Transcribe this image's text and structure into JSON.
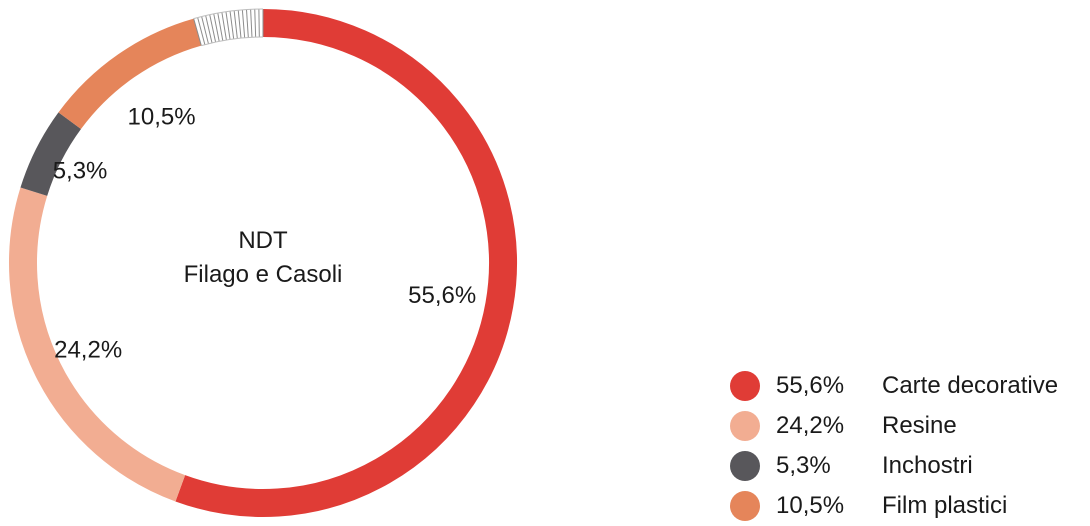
{
  "chart_data": {
    "type": "pie",
    "title": "NDT",
    "subtitle": "Filago e Casoli",
    "series": [
      {
        "name": "Carte decorative",
        "value": 55.6,
        "label": "55,6%",
        "color": "#e03c36"
      },
      {
        "name": "Resine",
        "value": 24.2,
        "label": "24,2%",
        "color": "#f2ad92"
      },
      {
        "name": "Inchostri",
        "value": 5.3,
        "label": "5,3%",
        "color": "#58575b"
      },
      {
        "name": "Film plastici",
        "value": 10.5,
        "label": "10,5%",
        "color": "#e5855a"
      }
    ],
    "legend_position": "bottom-right"
  }
}
